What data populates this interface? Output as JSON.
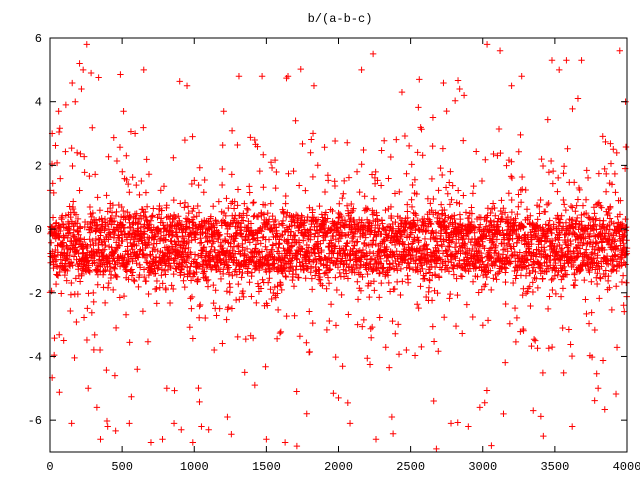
{
  "chart_data": {
    "type": "scatter",
    "title": "b/(a-b-c)",
    "xlabel": "",
    "ylabel": "",
    "xlim": [
      0,
      4000
    ],
    "ylim": [
      -7,
      6
    ],
    "xticks": [
      0,
      500,
      1000,
      1500,
      2000,
      2500,
      3000,
      3500,
      4000
    ],
    "yticks": [
      -6,
      -4,
      -2,
      0,
      2,
      4,
      6
    ],
    "marker": "+",
    "color": "#ff0000",
    "grid": false,
    "legend": "none",
    "series": [
      {
        "n_points": 4000,
        "dense_band_center": -0.5,
        "dense_band_spread": 0.85,
        "outlier_points": [
          {
            "x": 15,
            "y": 3.0
          },
          {
            "x": 60,
            "y": 3.7
          },
          {
            "x": 95,
            "y": -3.5
          },
          {
            "x": 110,
            "y": 3.9
          },
          {
            "x": 150,
            "y": -6.1
          },
          {
            "x": 175,
            "y": 4.0
          },
          {
            "x": 205,
            "y": 5.2
          },
          {
            "x": 218,
            "y": 4.4
          },
          {
            "x": 230,
            "y": 5.0
          },
          {
            "x": 255,
            "y": 5.8
          },
          {
            "x": 265,
            "y": -5.0
          },
          {
            "x": 285,
            "y": 4.9
          },
          {
            "x": 325,
            "y": -5.6
          },
          {
            "x": 350,
            "y": -6.6
          },
          {
            "x": 400,
            "y": -6.2
          },
          {
            "x": 450,
            "y": -4.6
          },
          {
            "x": 510,
            "y": 3.7
          },
          {
            "x": 550,
            "y": -6.1
          },
          {
            "x": 590,
            "y": 3.0
          },
          {
            "x": 605,
            "y": -4.4
          },
          {
            "x": 650,
            "y": 5.0
          },
          {
            "x": 700,
            "y": -6.7
          },
          {
            "x": 780,
            "y": -6.6
          },
          {
            "x": 810,
            "y": -5.0
          },
          {
            "x": 860,
            "y": -6.1
          },
          {
            "x": 910,
            "y": -6.3
          },
          {
            "x": 950,
            "y": 4.5
          },
          {
            "x": 990,
            "y": -6.7
          },
          {
            "x": 1050,
            "y": -6.2
          },
          {
            "x": 1100,
            "y": -6.3
          },
          {
            "x": 1230,
            "y": -5.9
          },
          {
            "x": 1310,
            "y": 4.8
          },
          {
            "x": 1350,
            "y": -4.5
          },
          {
            "x": 1420,
            "y": -4.9
          },
          {
            "x": 1500,
            "y": -6.6
          },
          {
            "x": 1630,
            "y": -6.7
          },
          {
            "x": 1650,
            "y": 4.8
          },
          {
            "x": 1710,
            "y": -5.1
          },
          {
            "x": 1780,
            "y": -5.8
          },
          {
            "x": 1830,
            "y": 4.5
          },
          {
            "x": 2000,
            "y": -5.3
          },
          {
            "x": 2080,
            "y": -6.1
          },
          {
            "x": 2160,
            "y": 5.0
          },
          {
            "x": 2240,
            "y": 5.5
          },
          {
            "x": 2260,
            "y": -6.6
          },
          {
            "x": 2370,
            "y": -5.9
          },
          {
            "x": 2440,
            "y": 4.3
          },
          {
            "x": 2560,
            "y": 4.7
          },
          {
            "x": 2660,
            "y": -5.4
          },
          {
            "x": 2780,
            "y": -6.1
          },
          {
            "x": 2840,
            "y": 4.4
          },
          {
            "x": 2900,
            "y": -6.2
          },
          {
            "x": 2980,
            "y": -5.6
          },
          {
            "x": 3030,
            "y": 5.8
          },
          {
            "x": 3060,
            "y": -6.8
          },
          {
            "x": 3120,
            "y": 5.6
          },
          {
            "x": 3200,
            "y": 4.5
          },
          {
            "x": 3270,
            "y": 4.8
          },
          {
            "x": 3350,
            "y": -5.7
          },
          {
            "x": 3420,
            "y": -6.5
          },
          {
            "x": 3480,
            "y": 5.3
          },
          {
            "x": 3530,
            "y": 5.0
          },
          {
            "x": 3580,
            "y": 5.3
          },
          {
            "x": 3620,
            "y": -6.2
          },
          {
            "x": 3660,
            "y": 4.1
          },
          {
            "x": 3800,
            "y": -5.0
          },
          {
            "x": 3950,
            "y": 5.6
          },
          {
            "x": 3990,
            "y": 4.0
          }
        ]
      }
    ]
  }
}
